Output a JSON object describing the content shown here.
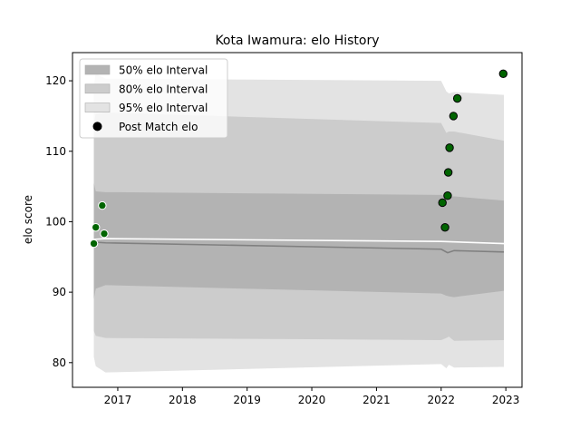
{
  "chart_data": {
    "type": "area",
    "title": "Kota Iwamura: elo History",
    "xlabel": "",
    "ylabel": "elo score",
    "xlim": [
      2016.3,
      2023.25
    ],
    "ylim": [
      76.5,
      124.0
    ],
    "x_ticks": [
      2017,
      2018,
      2019,
      2020,
      2021,
      2022,
      2023
    ],
    "x_tick_labels": [
      "2017",
      "2018",
      "2019",
      "2020",
      "2021",
      "2022",
      "2023"
    ],
    "y_ticks": [
      80,
      90,
      100,
      110,
      120
    ],
    "y_tick_labels": [
      "80",
      "90",
      "100",
      "110",
      "120"
    ],
    "grid": false,
    "legend": {
      "position": "top-left",
      "entries": [
        {
          "label": "50% elo Interval",
          "kind": "band",
          "color": "#b3b3b3"
        },
        {
          "label": "80% elo Interval",
          "kind": "band",
          "color": "#cccccc"
        },
        {
          "label": "95% elo Interval",
          "kind": "band",
          "color": "#e3e3e3"
        },
        {
          "label": "Post Match elo",
          "kind": "marker",
          "color": "#000000"
        }
      ]
    },
    "bands": [
      {
        "name": "95% elo Interval",
        "color": "#e3e3e3",
        "x": [
          2016.63,
          2016.66,
          2016.81,
          2022.0,
          2022.08,
          2022.12,
          2022.2,
          2022.97
        ],
        "upper": [
          119.5,
          121.0,
          120.3,
          120.0,
          118.5,
          118.2,
          118.4,
          118.0
        ],
        "lower": [
          80.8,
          79.5,
          78.6,
          79.8,
          79.2,
          79.7,
          79.3,
          79.4
        ]
      },
      {
        "name": "80% elo Interval",
        "color": "#cccccc",
        "x": [
          2016.63,
          2016.66,
          2016.81,
          2022.0,
          2022.08,
          2022.12,
          2022.2,
          2022.97
        ],
        "upper": [
          114.0,
          115.3,
          115.5,
          114.0,
          112.6,
          112.8,
          112.8,
          111.5
        ],
        "lower": [
          84.5,
          83.8,
          83.5,
          83.2,
          83.5,
          83.7,
          83.1,
          83.2
        ]
      },
      {
        "name": "50% elo Interval",
        "color": "#b3b3b3",
        "x": [
          2016.63,
          2016.66,
          2016.81,
          2022.0,
          2022.08,
          2022.12,
          2022.2,
          2022.97
        ],
        "upper": [
          105.5,
          104.3,
          104.2,
          103.8,
          103.6,
          103.5,
          103.6,
          103.0
        ],
        "lower": [
          89.0,
          90.5,
          91.0,
          89.8,
          89.5,
          89.4,
          89.3,
          90.2
        ]
      }
    ],
    "series": [
      {
        "kind": "line",
        "color": "#808080",
        "x": [
          2016.63,
          2016.81,
          2022.0,
          2022.1,
          2022.2,
          2022.97
        ],
        "y": [
          97.1,
          97.0,
          96.1,
          95.6,
          95.9,
          95.7
        ]
      },
      {
        "kind": "line",
        "color": "#ffffff",
        "x": [
          2016.63,
          2016.81,
          2022.0,
          2022.97
        ],
        "y": [
          97.5,
          97.6,
          97.2,
          96.9
        ]
      },
      {
        "name": "Post Match elo",
        "kind": "scatter",
        "points": [
          {
            "x": 2016.63,
            "y": 96.9,
            "edge": "#ffffff"
          },
          {
            "x": 2016.66,
            "y": 99.2,
            "edge": "#ffffff"
          },
          {
            "x": 2016.76,
            "y": 102.3,
            "edge": "#ffffff"
          },
          {
            "x": 2016.79,
            "y": 98.3,
            "edge": "#ffffff"
          },
          {
            "x": 2022.02,
            "y": 102.7,
            "edge": "#000000"
          },
          {
            "x": 2022.06,
            "y": 99.2,
            "edge": "#000000"
          },
          {
            "x": 2022.1,
            "y": 103.7,
            "edge": "#000000"
          },
          {
            "x": 2022.11,
            "y": 107.0,
            "edge": "#000000"
          },
          {
            "x": 2022.13,
            "y": 110.5,
            "edge": "#000000"
          },
          {
            "x": 2022.19,
            "y": 115.0,
            "edge": "#000000"
          },
          {
            "x": 2022.25,
            "y": 117.5,
            "edge": "#000000"
          },
          {
            "x": 2022.96,
            "y": 121.0,
            "edge": "#000000"
          }
        ],
        "fill": "#006400"
      }
    ]
  }
}
